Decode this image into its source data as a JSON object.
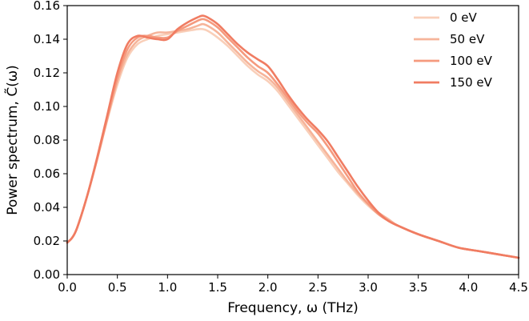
{
  "chart_data": {
    "type": "line",
    "xlabel": "Frequency, ω (THz)",
    "ylabel": "Power spectrum, C̃(ω)",
    "xlim": [
      0.0,
      4.5
    ],
    "ylim": [
      0.0,
      0.16
    ],
    "x_ticks": [
      "0.0",
      "0.5",
      "1.0",
      "1.5",
      "2.0",
      "2.5",
      "3.0",
      "3.5",
      "4.0",
      "4.5"
    ],
    "y_ticks": [
      "0.00",
      "0.02",
      "0.04",
      "0.06",
      "0.08",
      "0.10",
      "0.12",
      "0.14",
      "0.16"
    ],
    "grid": false,
    "legend_position": "top-right",
    "series": [
      {
        "name": "0 eV",
        "color": "#f9cfb9",
        "x": [
          0.0,
          0.05,
          0.1,
          0.2,
          0.3,
          0.4,
          0.5,
          0.6,
          0.7,
          0.8,
          0.9,
          1.0,
          1.1,
          1.2,
          1.3,
          1.35,
          1.4,
          1.5,
          1.6,
          1.7,
          1.8,
          1.9,
          2.0,
          2.1,
          2.2,
          2.3,
          2.4,
          2.5,
          2.6,
          2.7,
          2.8,
          2.9,
          3.0,
          3.1,
          3.2,
          3.3,
          3.5,
          3.7,
          3.9,
          4.1,
          4.3,
          4.5
        ],
        "y": [
          0.019,
          0.022,
          0.028,
          0.047,
          0.069,
          0.092,
          0.113,
          0.129,
          0.137,
          0.14,
          0.142,
          0.143,
          0.144,
          0.145,
          0.146,
          0.146,
          0.145,
          0.141,
          0.136,
          0.13,
          0.124,
          0.119,
          0.115,
          0.109,
          0.101,
          0.093,
          0.085,
          0.077,
          0.069,
          0.061,
          0.054,
          0.047,
          0.041,
          0.036,
          0.032,
          0.029,
          0.024,
          0.02,
          0.016,
          0.014,
          0.012,
          0.01
        ]
      },
      {
        "name": "50 eV",
        "color": "#f6b49a",
        "x": [
          0.0,
          0.05,
          0.1,
          0.2,
          0.3,
          0.4,
          0.5,
          0.6,
          0.7,
          0.8,
          0.9,
          1.0,
          1.1,
          1.2,
          1.3,
          1.35,
          1.4,
          1.5,
          1.6,
          1.7,
          1.8,
          1.9,
          2.0,
          2.1,
          2.2,
          2.3,
          2.4,
          2.5,
          2.6,
          2.7,
          2.8,
          2.9,
          3.0,
          3.1,
          3.2,
          3.3,
          3.5,
          3.7,
          3.9,
          4.1,
          4.3,
          4.5
        ],
        "y": [
          0.019,
          0.022,
          0.028,
          0.047,
          0.069,
          0.093,
          0.115,
          0.131,
          0.139,
          0.142,
          0.144,
          0.144,
          0.145,
          0.146,
          0.148,
          0.149,
          0.148,
          0.144,
          0.138,
          0.132,
          0.126,
          0.121,
          0.117,
          0.111,
          0.103,
          0.095,
          0.087,
          0.079,
          0.071,
          0.063,
          0.055,
          0.048,
          0.042,
          0.037,
          0.033,
          0.029,
          0.024,
          0.02,
          0.016,
          0.014,
          0.012,
          0.01
        ]
      },
      {
        "name": "100 eV",
        "color": "#f59a7e",
        "x": [
          0.0,
          0.05,
          0.1,
          0.2,
          0.3,
          0.4,
          0.5,
          0.6,
          0.7,
          0.8,
          0.9,
          1.0,
          1.1,
          1.2,
          1.3,
          1.35,
          1.4,
          1.5,
          1.6,
          1.7,
          1.8,
          1.9,
          2.0,
          2.1,
          2.2,
          2.3,
          2.4,
          2.5,
          2.6,
          2.7,
          2.8,
          2.9,
          3.0,
          3.1,
          3.2,
          3.3,
          3.5,
          3.7,
          3.9,
          4.1,
          4.3,
          4.5
        ],
        "y": [
          0.019,
          0.022,
          0.028,
          0.047,
          0.069,
          0.093,
          0.117,
          0.134,
          0.141,
          0.142,
          0.141,
          0.141,
          0.145,
          0.148,
          0.151,
          0.152,
          0.151,
          0.147,
          0.141,
          0.135,
          0.129,
          0.124,
          0.12,
          0.113,
          0.105,
          0.097,
          0.09,
          0.084,
          0.076,
          0.067,
          0.058,
          0.049,
          0.042,
          0.036,
          0.032,
          0.029,
          0.024,
          0.02,
          0.016,
          0.014,
          0.012,
          0.01
        ]
      },
      {
        "name": "150 eV",
        "color": "#f07c62",
        "x": [
          0.0,
          0.05,
          0.1,
          0.2,
          0.3,
          0.4,
          0.5,
          0.6,
          0.7,
          0.8,
          0.9,
          1.0,
          1.1,
          1.2,
          1.3,
          1.35,
          1.4,
          1.5,
          1.6,
          1.7,
          1.8,
          1.9,
          2.0,
          2.1,
          2.2,
          2.3,
          2.4,
          2.5,
          2.6,
          2.7,
          2.8,
          2.9,
          3.0,
          3.1,
          3.2,
          3.3,
          3.5,
          3.7,
          3.9,
          4.1,
          4.3,
          4.5
        ],
        "y": [
          0.019,
          0.022,
          0.028,
          0.047,
          0.07,
          0.095,
          0.12,
          0.137,
          0.142,
          0.141,
          0.14,
          0.14,
          0.146,
          0.15,
          0.153,
          0.154,
          0.153,
          0.149,
          0.143,
          0.137,
          0.132,
          0.128,
          0.124,
          0.116,
          0.107,
          0.099,
          0.092,
          0.086,
          0.079,
          0.07,
          0.061,
          0.052,
          0.044,
          0.037,
          0.032,
          0.029,
          0.024,
          0.02,
          0.016,
          0.014,
          0.012,
          0.01
        ]
      }
    ]
  }
}
